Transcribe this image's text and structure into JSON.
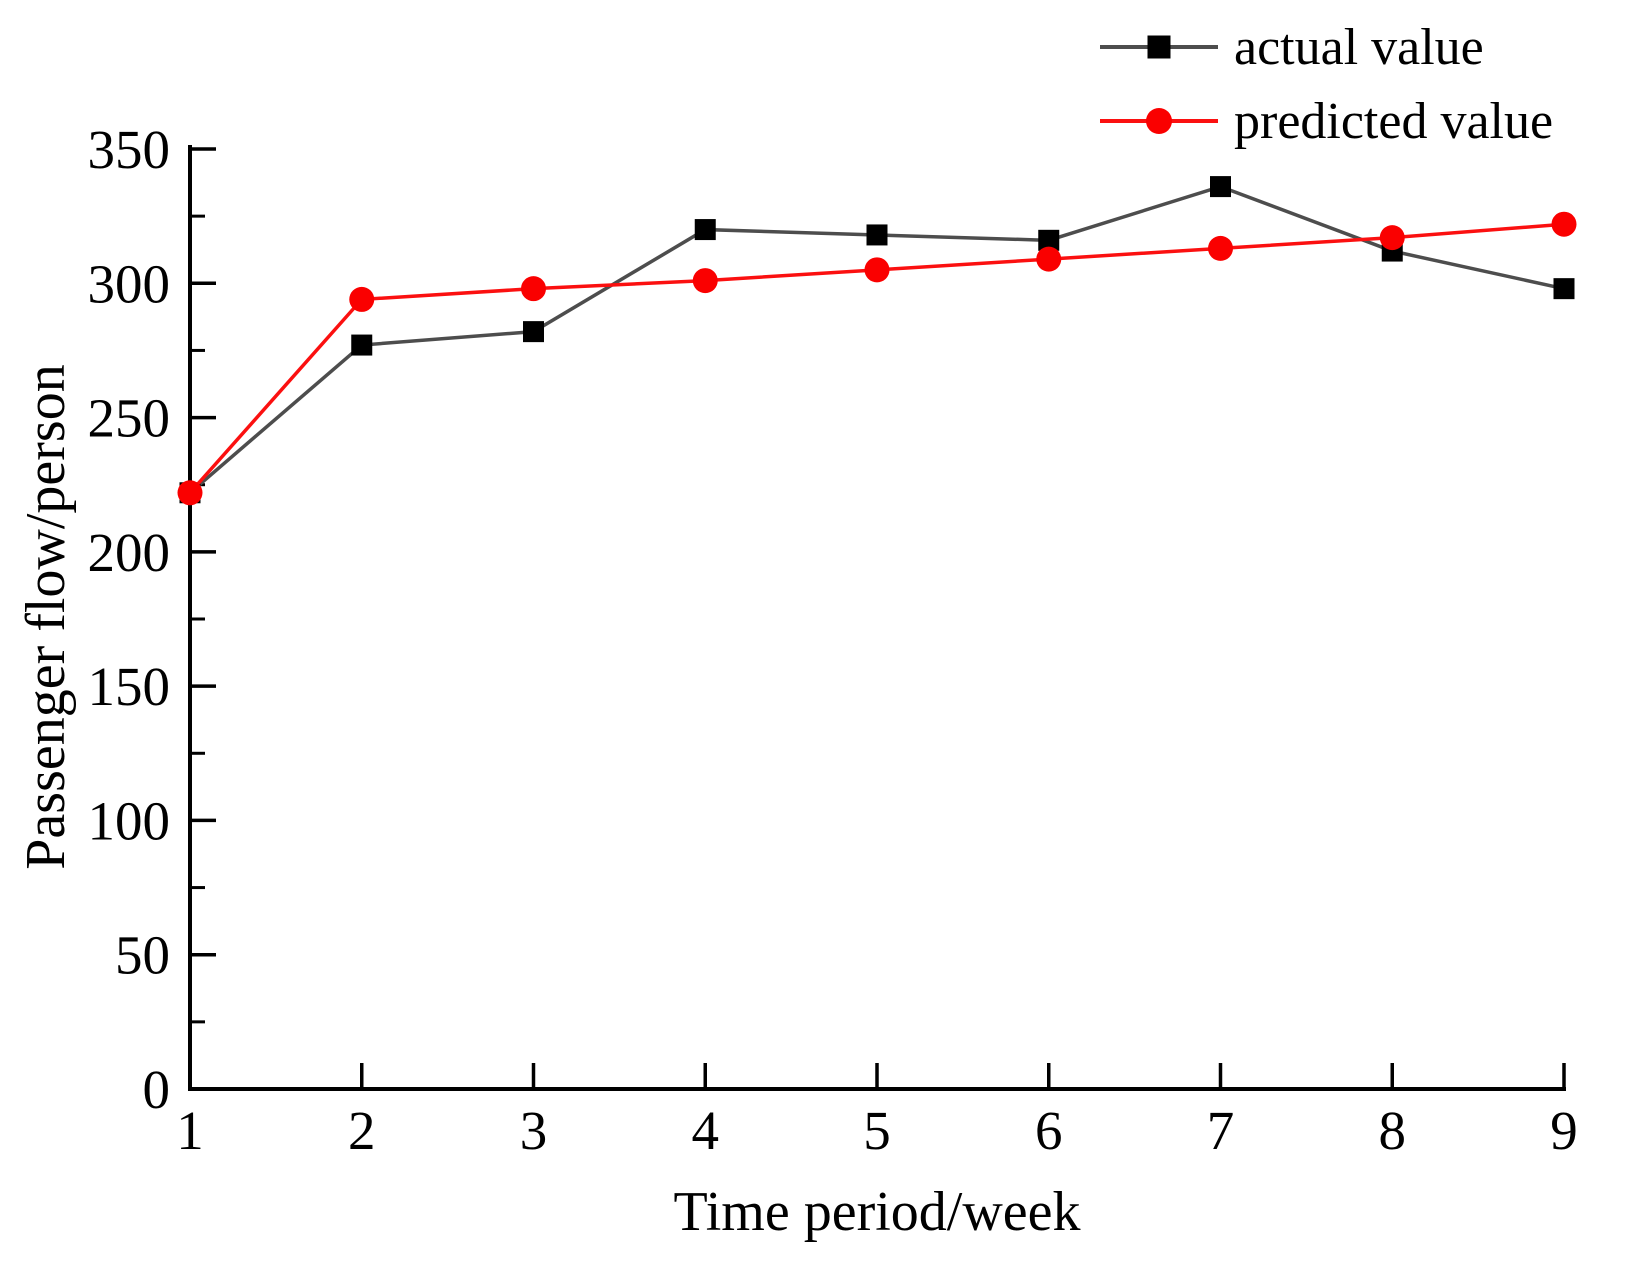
{
  "figure": {
    "background": "#ffffff",
    "text_color": "#000000",
    "axis_color": "#000000"
  },
  "chart_data": {
    "type": "line",
    "title": "",
    "xlabel": "Time period/week",
    "ylabel": "Passenger flow/person",
    "x": [
      1,
      2,
      3,
      4,
      5,
      6,
      7,
      8,
      9
    ],
    "x_tick_labels": [
      "1",
      "2",
      "3",
      "4",
      "5",
      "6",
      "7",
      "8",
      "9"
    ],
    "xlim": [
      1,
      9
    ],
    "y_tick_values": [
      0,
      50,
      100,
      150,
      200,
      250,
      300,
      350
    ],
    "y_tick_labels": [
      "0",
      "50",
      "100",
      "150",
      "200",
      "250",
      "300",
      "350"
    ],
    "y_minor_tick_step": 25,
    "ylim": [
      0,
      350
    ],
    "grid": false,
    "legend_position": "top-right",
    "series": [
      {
        "name": "actual value",
        "marker": "square",
        "line_color": "#4d4d4d",
        "marker_color": "#000000",
        "values": [
          222,
          277,
          282,
          320,
          318,
          316,
          336,
          312,
          298
        ]
      },
      {
        "name": "predicted value",
        "marker": "circle",
        "line_color": "#fb1010",
        "marker_color": "#fa0000",
        "values": [
          222,
          294,
          298,
          301,
          305,
          309,
          313,
          317,
          322
        ]
      }
    ]
  }
}
